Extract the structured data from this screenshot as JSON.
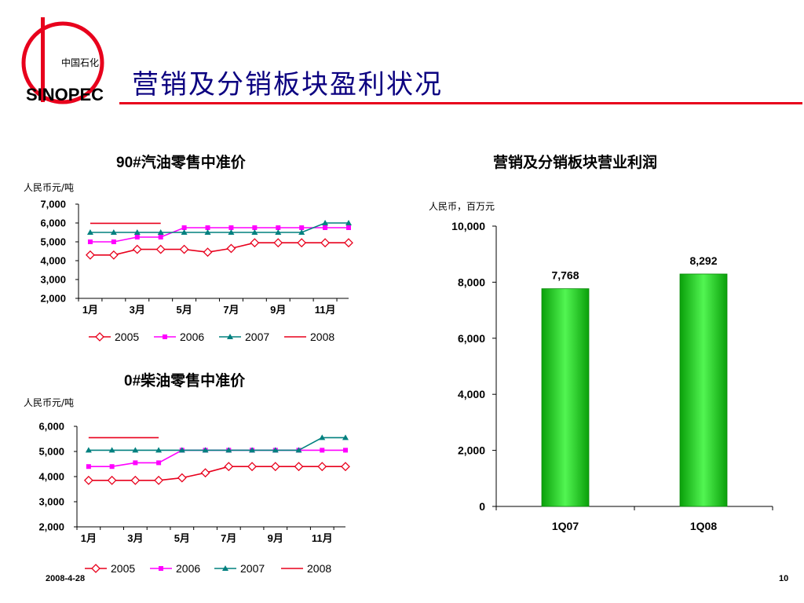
{
  "slide": {
    "title": "营销及分销板块盈利状况",
    "logo_text_cn": "中国石化",
    "logo_text_en": "SINOPEC",
    "footer_date": "2008-4-28",
    "page_number": "10"
  },
  "colors": {
    "rule": "#e8001c",
    "title": "#0b0080",
    "s2005": "#e8001c",
    "s2006": "#ff00ff",
    "s2007": "#00807f",
    "s2008": "#e8001c",
    "bar": "#21c121"
  },
  "chart_data": [
    {
      "type": "line",
      "title": "90#汽油零售中准价",
      "ylabel": "人民币元/吨",
      "ylim": [
        2000,
        7000
      ],
      "yticks": [
        "2,000",
        "3,000",
        "4,000",
        "5,000",
        "6,000",
        "7,000"
      ],
      "ytick_values": [
        2000,
        3000,
        4000,
        5000,
        6000,
        7000
      ],
      "xticks": [
        "1月",
        "3月",
        "5月",
        "7月",
        "9月",
        "11月"
      ],
      "xtick_months": [
        1,
        3,
        5,
        7,
        9,
        11
      ],
      "series": [
        {
          "name": "2005",
          "x": [
            1,
            2,
            3,
            4,
            5,
            6,
            7,
            8,
            9,
            10,
            11,
            12
          ],
          "values": [
            4300,
            4300,
            4600,
            4600,
            4600,
            4450,
            4650,
            4950,
            4950,
            4950,
            4950,
            4950
          ],
          "marker": "diamond"
        },
        {
          "name": "2006",
          "x": [
            1,
            2,
            3,
            4,
            5,
            6,
            7,
            8,
            9,
            10,
            11,
            12
          ],
          "values": [
            5000,
            5000,
            5250,
            5250,
            5750,
            5750,
            5750,
            5750,
            5750,
            5750,
            5750,
            5750
          ],
          "marker": "square"
        },
        {
          "name": "2007",
          "x": [
            1,
            2,
            3,
            4,
            5,
            6,
            7,
            8,
            9,
            10,
            11,
            12
          ],
          "values": [
            5500,
            5500,
            5500,
            5500,
            5500,
            5500,
            5500,
            5500,
            5500,
            5500,
            6000,
            6000
          ],
          "marker": "triangle"
        },
        {
          "name": "2008",
          "x": [
            1,
            4
          ],
          "values": [
            5980,
            5980
          ],
          "marker": "none"
        }
      ],
      "legend": "bottom"
    },
    {
      "type": "line",
      "title": "0#柴油零售中准价",
      "ylabel": "人民币元/吨",
      "ylim": [
        2000,
        6000
      ],
      "yticks": [
        "2,000",
        "3,000",
        "4,000",
        "5,000",
        "6,000"
      ],
      "ytick_values": [
        2000,
        3000,
        4000,
        5000,
        6000
      ],
      "xticks": [
        "1月",
        "3月",
        "5月",
        "7月",
        "9月",
        "11月"
      ],
      "xtick_months": [
        1,
        3,
        5,
        7,
        9,
        11
      ],
      "series": [
        {
          "name": "2005",
          "x": [
            1,
            2,
            3,
            4,
            5,
            6,
            7,
            8,
            9,
            10,
            11,
            12
          ],
          "values": [
            3850,
            3850,
            3850,
            3850,
            3950,
            4150,
            4400,
            4400,
            4400,
            4400,
            4400,
            4400
          ],
          "marker": "diamond"
        },
        {
          "name": "2006",
          "x": [
            1,
            2,
            3,
            4,
            5,
            6,
            7,
            8,
            9,
            10,
            11,
            12
          ],
          "values": [
            4400,
            4400,
            4550,
            4550,
            5050,
            5050,
            5050,
            5050,
            5050,
            5050,
            5050,
            5050
          ],
          "marker": "square"
        },
        {
          "name": "2007",
          "x": [
            1,
            2,
            3,
            4,
            5,
            6,
            7,
            8,
            9,
            10,
            11,
            12
          ],
          "values": [
            5050,
            5050,
            5050,
            5050,
            5050,
            5050,
            5050,
            5050,
            5050,
            5050,
            5550,
            5550
          ],
          "marker": "triangle"
        },
        {
          "name": "2008",
          "x": [
            1,
            4
          ],
          "values": [
            5550,
            5550
          ],
          "marker": "none"
        }
      ],
      "legend": "bottom"
    },
    {
      "type": "bar",
      "title": "营销及分销板块营业利润",
      "ylabel": "人民币，百万元",
      "ylim": [
        0,
        10000
      ],
      "yticks": [
        "0",
        "2,000",
        "4,000",
        "6,000",
        "8,000",
        "10,000"
      ],
      "ytick_values": [
        0,
        2000,
        4000,
        6000,
        8000,
        10000
      ],
      "categories": [
        "1Q07",
        "1Q08"
      ],
      "values": [
        7768,
        8292
      ],
      "value_labels": [
        "7,768",
        "8,292"
      ]
    }
  ]
}
